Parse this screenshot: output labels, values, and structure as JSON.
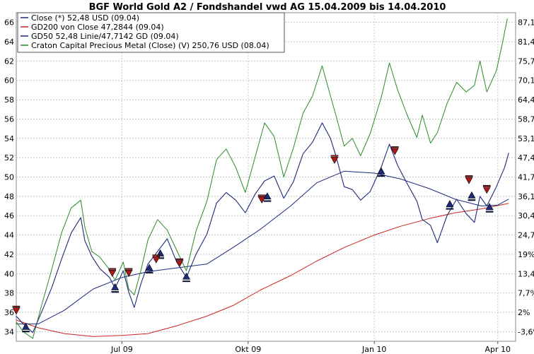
{
  "chart_data": {
    "type": "line",
    "title": "BGF World Gold A2 / Fondshandel vwd AG 15.04.2009 bis 14.04.2010",
    "grid": true,
    "legend_position": "top-left",
    "y_left": {
      "min": 33,
      "max": 67,
      "ticks": [
        "34",
        "36",
        "38",
        "40",
        "42",
        "44",
        "46",
        "48",
        "50",
        "52",
        "54",
        "56",
        "58",
        "60",
        "62",
        "64",
        "66"
      ]
    },
    "y_right": {
      "ticks": [
        "-3,6%",
        "2%",
        "7,7%",
        "13,4%",
        "19%",
        "24,7%",
        "30,4%",
        "36,1%",
        "41,7%",
        "47,4%",
        "53,1%",
        "58,7%",
        "64,4%",
        "70,1%",
        "75,7%",
        "81,4%",
        "87,1%"
      ]
    },
    "x_axis": {
      "start": "2009-04-15",
      "end": "2010-04-14",
      "ticks": [
        {
          "date": "2009-07-01",
          "label": "Jul 09"
        },
        {
          "date": "2009-10-01",
          "label": "Okt 09"
        },
        {
          "date": "2010-01-01",
          "label": "Jan 10"
        },
        {
          "date": "2010-04-01",
          "label": "Apr 10"
        }
      ]
    },
    "series": [
      {
        "name": "Close (*) 52,48 USD (09.04)",
        "color": "#1b2a7a",
        "points": [
          [
            "2009-04-15",
            35.6
          ],
          [
            "2009-04-20",
            34.8
          ],
          [
            "2009-04-27",
            33.9
          ],
          [
            "2009-05-04",
            36.2
          ],
          [
            "2009-05-11",
            38.6
          ],
          [
            "2009-05-18",
            41.5
          ],
          [
            "2009-05-25",
            44.2
          ],
          [
            "2009-06-01",
            45.8
          ],
          [
            "2009-06-04",
            43.4
          ],
          [
            "2009-06-09",
            41.8
          ],
          [
            "2009-06-15",
            40.5
          ],
          [
            "2009-06-22",
            39.6
          ],
          [
            "2009-06-26",
            38.5
          ],
          [
            "2009-07-02",
            40.3
          ],
          [
            "2009-07-06",
            38.1
          ],
          [
            "2009-07-10",
            36.5
          ],
          [
            "2009-07-15",
            39.0
          ],
          [
            "2009-07-20",
            41.0
          ],
          [
            "2009-07-27",
            42.3
          ],
          [
            "2009-08-03",
            43.6
          ],
          [
            "2009-08-10",
            41.2
          ],
          [
            "2009-08-17",
            39.6
          ],
          [
            "2009-08-24",
            42.0
          ],
          [
            "2009-09-01",
            44.1
          ],
          [
            "2009-09-08",
            47.3
          ],
          [
            "2009-09-15",
            48.4
          ],
          [
            "2009-09-22",
            47.6
          ],
          [
            "2009-09-29",
            46.3
          ],
          [
            "2009-10-06",
            48.2
          ],
          [
            "2009-10-13",
            49.6
          ],
          [
            "2009-10-20",
            50.1
          ],
          [
            "2009-10-27",
            47.8
          ],
          [
            "2009-11-03",
            49.5
          ],
          [
            "2009-11-10",
            52.4
          ],
          [
            "2009-11-17",
            53.6
          ],
          [
            "2009-11-24",
            55.6
          ],
          [
            "2009-11-30",
            54.0
          ],
          [
            "2009-12-04",
            52.2
          ],
          [
            "2009-12-10",
            49.0
          ],
          [
            "2009-12-16",
            48.7
          ],
          [
            "2009-12-22",
            47.6
          ],
          [
            "2009-12-29",
            48.5
          ],
          [
            "2010-01-06",
            51.0
          ],
          [
            "2010-01-12",
            53.4
          ],
          [
            "2010-01-18",
            51.2
          ],
          [
            "2010-01-25",
            49.3
          ],
          [
            "2010-02-01",
            47.5
          ],
          [
            "2010-02-05",
            45.6
          ],
          [
            "2010-02-11",
            45.0
          ],
          [
            "2010-02-16",
            43.2
          ],
          [
            "2010-02-23",
            46.0
          ],
          [
            "2010-03-02",
            47.7
          ],
          [
            "2010-03-09",
            46.2
          ],
          [
            "2010-03-15",
            45.3
          ],
          [
            "2010-03-19",
            48.0
          ],
          [
            "2010-03-24",
            47.0
          ],
          [
            "2010-03-31",
            49.0
          ],
          [
            "2010-04-06",
            51.0
          ],
          [
            "2010-04-09",
            52.5
          ]
        ]
      },
      {
        "name": "GD200 von Close 47,2844 (09.04)",
        "color": "#cc2222",
        "points": [
          [
            "2009-04-15",
            35.2
          ],
          [
            "2009-05-01",
            34.4
          ],
          [
            "2009-05-20",
            33.8
          ],
          [
            "2009-06-10",
            33.5
          ],
          [
            "2009-07-01",
            33.6
          ],
          [
            "2009-07-20",
            33.8
          ],
          [
            "2009-08-10",
            34.6
          ],
          [
            "2009-09-01",
            35.6
          ],
          [
            "2009-09-20",
            36.7
          ],
          [
            "2009-10-10",
            38.3
          ],
          [
            "2009-11-01",
            39.8
          ],
          [
            "2009-11-20",
            41.3
          ],
          [
            "2009-12-10",
            42.7
          ],
          [
            "2010-01-01",
            44.0
          ],
          [
            "2010-01-20",
            44.9
          ],
          [
            "2010-02-10",
            45.7
          ],
          [
            "2010-03-01",
            46.3
          ],
          [
            "2010-03-20",
            46.7
          ],
          [
            "2010-04-09",
            47.28
          ]
        ]
      },
      {
        "name": "GD50 52,48 Linie/47,7142 GD (09.04)",
        "color": "#1b2a7a",
        "points": [
          [
            "2009-04-15",
            34.8
          ],
          [
            "2009-05-01",
            34.8
          ],
          [
            "2009-05-20",
            36.2
          ],
          [
            "2009-06-10",
            38.4
          ],
          [
            "2009-07-01",
            39.6
          ],
          [
            "2009-07-20",
            40.2
          ],
          [
            "2009-08-10",
            40.6
          ],
          [
            "2009-09-01",
            41.0
          ],
          [
            "2009-09-20",
            42.7
          ],
          [
            "2009-10-10",
            44.6
          ],
          [
            "2009-11-01",
            47.0
          ],
          [
            "2009-11-20",
            49.4
          ],
          [
            "2009-12-10",
            50.6
          ],
          [
            "2010-01-01",
            50.4
          ],
          [
            "2010-01-20",
            49.8
          ],
          [
            "2010-02-10",
            48.8
          ],
          [
            "2010-03-01",
            47.7
          ],
          [
            "2010-03-20",
            47.0
          ],
          [
            "2010-04-01",
            47.1
          ],
          [
            "2010-04-09",
            47.71
          ]
        ]
      },
      {
        "name": "Craton Capital Precious Metal (Close) (V) 250,76 USD (08.04)",
        "color": "#2a8a2a",
        "points": [
          [
            "2009-04-15",
            35.0
          ],
          [
            "2009-04-20",
            34.0
          ],
          [
            "2009-04-27",
            33.3
          ],
          [
            "2009-05-04",
            37.0
          ],
          [
            "2009-05-11",
            40.5
          ],
          [
            "2009-05-18",
            44.2
          ],
          [
            "2009-05-25",
            46.8
          ],
          [
            "2009-06-01",
            47.6
          ],
          [
            "2009-06-04",
            44.8
          ],
          [
            "2009-06-09",
            42.3
          ],
          [
            "2009-06-15",
            41.7
          ],
          [
            "2009-06-22",
            40.4
          ],
          [
            "2009-06-26",
            39.3
          ],
          [
            "2009-07-02",
            41.2
          ],
          [
            "2009-07-06",
            38.4
          ],
          [
            "2009-07-10",
            37.8
          ],
          [
            "2009-07-15",
            40.4
          ],
          [
            "2009-07-20",
            43.5
          ],
          [
            "2009-07-27",
            45.6
          ],
          [
            "2009-08-03",
            44.5
          ],
          [
            "2009-08-10",
            42.4
          ],
          [
            "2009-08-17",
            40.3
          ],
          [
            "2009-08-24",
            44.4
          ],
          [
            "2009-09-01",
            47.5
          ],
          [
            "2009-09-08",
            51.8
          ],
          [
            "2009-09-15",
            52.9
          ],
          [
            "2009-09-22",
            51.0
          ],
          [
            "2009-09-29",
            48.4
          ],
          [
            "2009-10-06",
            52.0
          ],
          [
            "2009-10-13",
            55.6
          ],
          [
            "2009-10-20",
            54.2
          ],
          [
            "2009-10-27",
            50.0
          ],
          [
            "2009-11-03",
            53.0
          ],
          [
            "2009-11-10",
            56.6
          ],
          [
            "2009-11-17",
            58.4
          ],
          [
            "2009-11-24",
            61.5
          ],
          [
            "2009-11-30",
            58.4
          ],
          [
            "2009-12-04",
            56.4
          ],
          [
            "2009-12-10",
            53.2
          ],
          [
            "2009-12-16",
            54.0
          ],
          [
            "2009-12-22",
            52.2
          ],
          [
            "2009-12-29",
            54.5
          ],
          [
            "2010-01-06",
            58.2
          ],
          [
            "2010-01-12",
            61.8
          ],
          [
            "2010-01-18",
            59.0
          ],
          [
            "2010-01-25",
            56.4
          ],
          [
            "2010-02-01",
            54.1
          ],
          [
            "2010-02-05",
            56.4
          ],
          [
            "2010-02-11",
            53.5
          ],
          [
            "2010-02-16",
            54.6
          ],
          [
            "2010-02-23",
            57.6
          ],
          [
            "2010-03-02",
            59.8
          ],
          [
            "2010-03-09",
            58.8
          ],
          [
            "2010-03-15",
            59.5
          ],
          [
            "2010-03-19",
            62.0
          ],
          [
            "2010-03-24",
            58.8
          ],
          [
            "2010-03-31",
            61.0
          ],
          [
            "2010-04-04",
            63.6
          ],
          [
            "2010-04-08",
            66.4
          ]
        ]
      }
    ],
    "markers": {
      "buy_color": "#1b2a7a",
      "sell_color": "#b01818",
      "buy": [
        [
          "2009-04-22",
          34.5
        ],
        [
          "2009-06-26",
          38.6
        ],
        [
          "2009-07-21",
          40.6
        ],
        [
          "2009-07-29",
          42.1
        ],
        [
          "2009-08-17",
          39.7
        ],
        [
          "2009-10-15",
          48.0
        ],
        [
          "2010-01-06",
          50.6
        ],
        [
          "2010-02-25",
          47.2
        ],
        [
          "2010-03-13",
          48.1
        ],
        [
          "2010-03-26",
          46.9
        ]
      ],
      "sell": [
        [
          "2009-04-15",
          36.1
        ],
        [
          "2009-06-24",
          40.0
        ],
        [
          "2009-07-06",
          40.0
        ],
        [
          "2009-07-26",
          41.4
        ],
        [
          "2009-08-12",
          41.0
        ],
        [
          "2009-10-11",
          47.6
        ],
        [
          "2009-12-03",
          51.7
        ],
        [
          "2010-01-16",
          52.6
        ],
        [
          "2010-03-11",
          49.6
        ],
        [
          "2010-03-24",
          48.6
        ]
      ]
    }
  }
}
